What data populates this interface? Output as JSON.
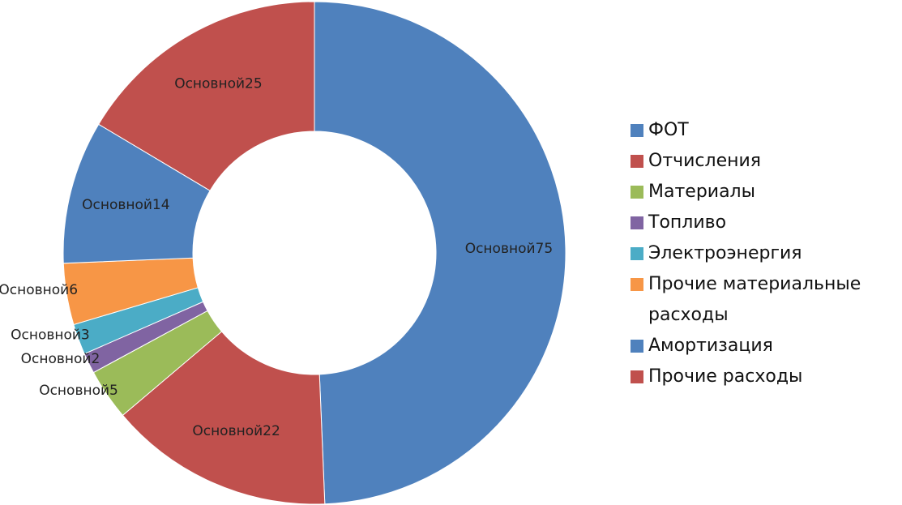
{
  "chart_data": {
    "type": "donut",
    "categories": [
      "ФОТ",
      "Отчисления",
      "Материалы",
      "Топливо",
      "Электроэнергия",
      "Прочие материальные расходы",
      "Амортизация",
      "Прочие расходы"
    ],
    "values": [
      75,
      22,
      5,
      2,
      3,
      6,
      14,
      25
    ],
    "value_labels": [
      "Основной75",
      "Основной22",
      "Основной5",
      "Основной2",
      "Основной3",
      "Основной6",
      "Основной14",
      "Основной25"
    ],
    "colors": [
      "#4f81bd",
      "#c0504d",
      "#9bbb59",
      "#8064a2",
      "#4bacc6",
      "#f79646",
      "#4f81bd",
      "#c0504d"
    ],
    "legend": "right"
  }
}
